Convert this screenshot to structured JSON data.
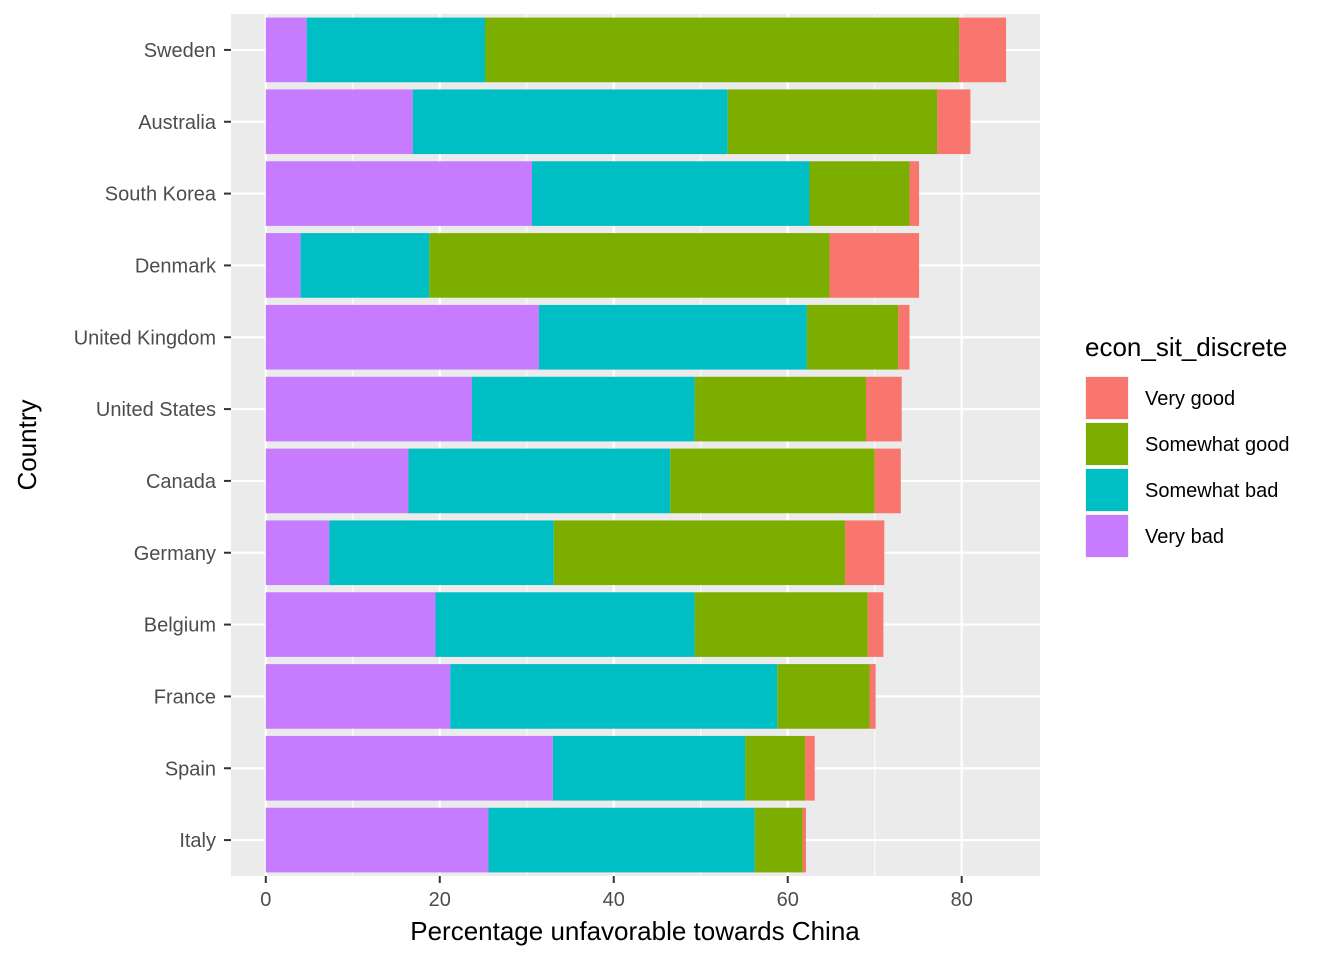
{
  "chart_data": {
    "type": "bar",
    "orientation": "horizontal",
    "stacked": true,
    "xlabel": "Percentage unfavorable towards China",
    "ylabel": "Country",
    "xlim": [
      -4,
      89
    ],
    "x_ticks": [
      0,
      20,
      40,
      60,
      80
    ],
    "grid": true,
    "legend_position": "right",
    "legend_title": "econ_sit_discrete",
    "categories": [
      "Sweden",
      "Australia",
      "South Korea",
      "Denmark",
      "United Kingdom",
      "United States",
      "Canada",
      "Germany",
      "Belgium",
      "France",
      "Spain",
      "Italy"
    ],
    "stack_order": [
      "Very bad",
      "Somewhat bad",
      "Somewhat good",
      "Very good"
    ],
    "legend_order": [
      "Very good",
      "Somewhat good",
      "Somewhat bad",
      "Very bad"
    ],
    "series": [
      {
        "name": "Very bad",
        "color": "#C77CFF",
        "values": [
          4.7,
          16.9,
          30.6,
          4.0,
          31.4,
          23.7,
          16.4,
          7.3,
          19.5,
          21.2,
          33.0,
          25.6
        ]
      },
      {
        "name": "Somewhat bad",
        "color": "#00BFC4",
        "values": [
          20.5,
          36.2,
          31.9,
          14.8,
          30.8,
          25.6,
          30.1,
          25.8,
          29.8,
          37.6,
          22.1,
          30.6
        ]
      },
      {
        "name": "Somewhat good",
        "color": "#7CAE00",
        "values": [
          54.5,
          24.1,
          11.5,
          46.0,
          10.5,
          19.7,
          23.5,
          33.5,
          19.9,
          10.6,
          6.9,
          5.5
        ]
      },
      {
        "name": "Very good",
        "color": "#F8766D",
        "values": [
          5.4,
          3.8,
          1.1,
          10.3,
          1.3,
          4.1,
          3.0,
          4.5,
          1.8,
          0.7,
          1.1,
          0.4
        ]
      }
    ]
  }
}
